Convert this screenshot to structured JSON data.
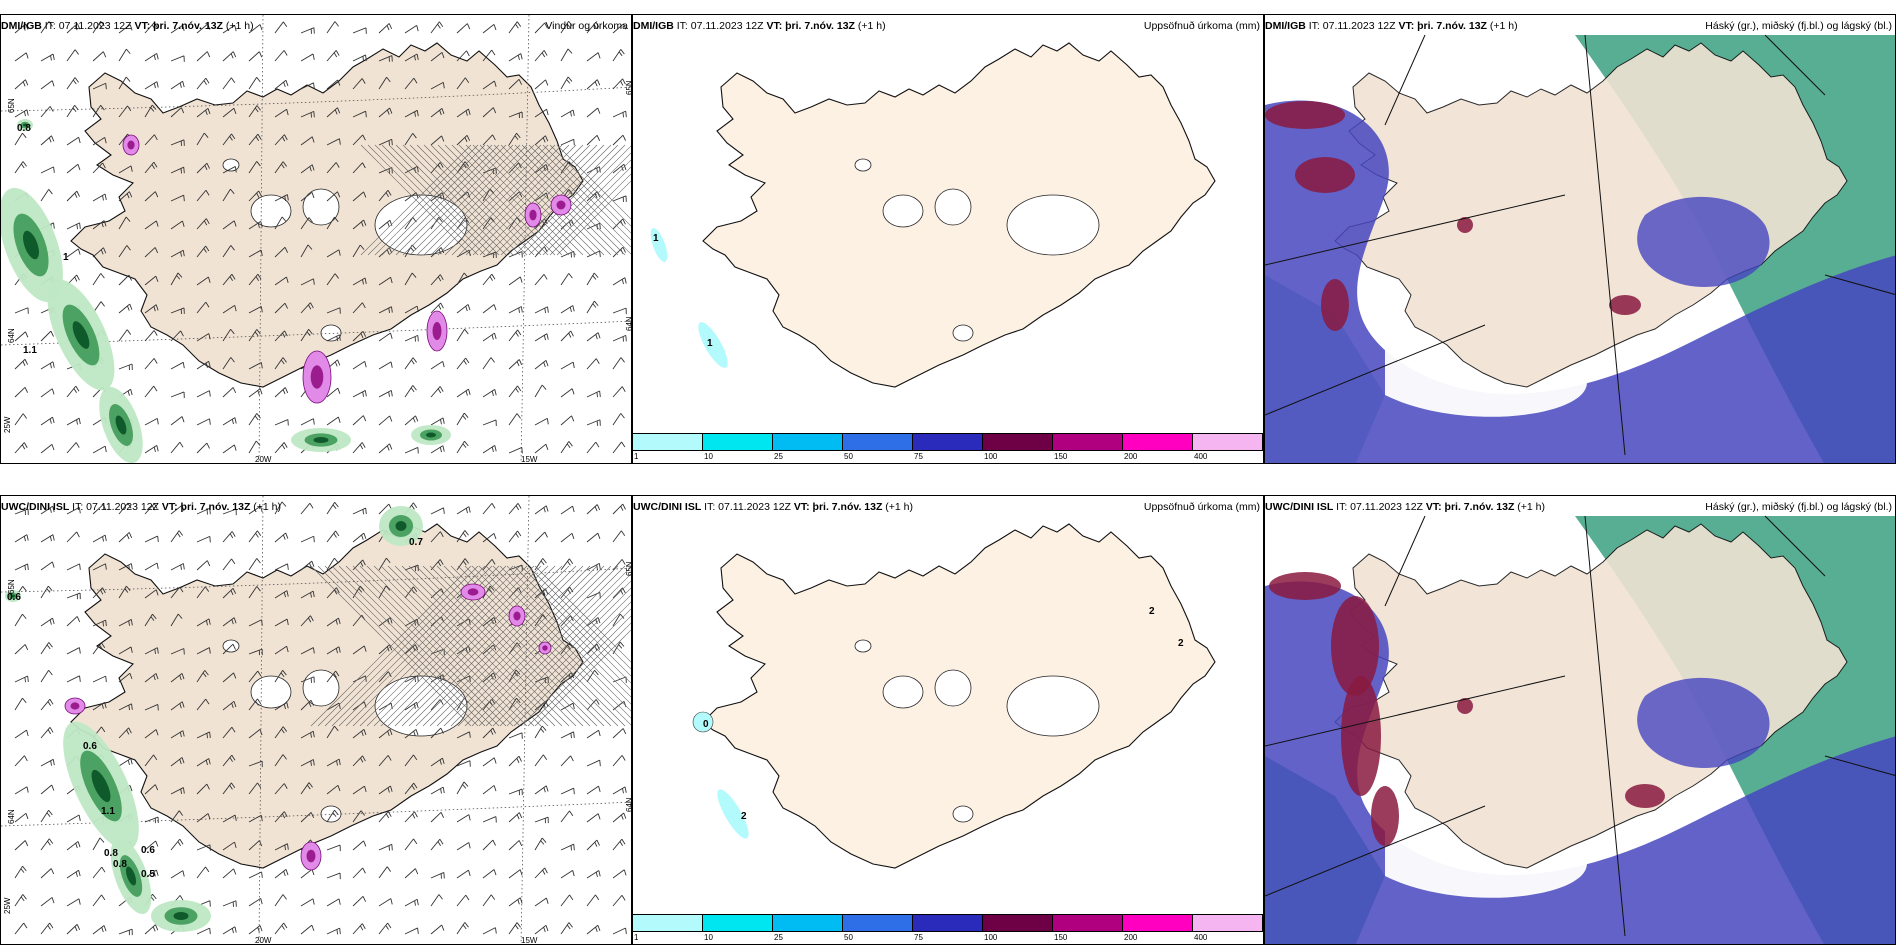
{
  "rows": [
    {
      "model": "DMI/IGB",
      "it_label": "IT:",
      "it": "07.11.2023 12Z",
      "vt_label": "VT:",
      "vt": "þri. 7.nóv. 13Z",
      "lead": "(+1 h)",
      "panels": {
        "wind": {
          "title": "Vindur og úrkoma",
          "values": [
            {
              "text": "0.8",
              "left": 16,
              "top": 108
            },
            {
              "text": "1.1",
              "left": 22,
              "top": 330
            },
            {
              "text": "1",
              "left": 62,
              "top": 237
            }
          ]
        },
        "precip": {
          "title": "Uppsöfnuð úrkoma (mm)",
          "values": [
            {
              "text": "1",
              "left": 20,
              "top": 218
            },
            {
              "text": "1",
              "left": 74,
              "top": 323
            }
          ]
        },
        "cloud": {
          "title": "Háský (gr.), miðský (fj.bl.) og lágský (bl.)"
        }
      }
    },
    {
      "model": "UWC/DINI ISL",
      "it_label": "IT:",
      "it": "07.11.2023 12Z",
      "vt_label": "VT:",
      "vt": "þri. 7.nóv. 13Z",
      "lead": "(+1 h)",
      "panels": {
        "wind": {
          "title": "",
          "values": [
            {
              "text": "0.7",
              "left": 408,
              "top": 41
            },
            {
              "text": "0.6",
              "left": 6,
              "top": 96
            },
            {
              "text": "0.6",
              "left": 82,
              "top": 245
            },
            {
              "text": "1.1",
              "left": 100,
              "top": 310
            },
            {
              "text": "0.8",
              "left": 103,
              "top": 352
            },
            {
              "text": "0.6",
              "left": 140,
              "top": 349
            },
            {
              "text": "0.8",
              "left": 112,
              "top": 363
            },
            {
              "text": "0.5",
              "left": 140,
              "top": 373
            }
          ]
        },
        "precip": {
          "title": "Uppsöfnuð úrkoma (mm)",
          "values": [
            {
              "text": "2",
              "left": 516,
              "top": 110
            },
            {
              "text": "2",
              "left": 545,
              "top": 142
            },
            {
              "text": "0",
              "left": 70,
              "top": 223
            },
            {
              "text": "2",
              "left": 108,
              "top": 315
            }
          ]
        },
        "cloud": {
          "title": "Háský (gr.), miðský (fj.bl.) og lágský (bl.)"
        }
      }
    }
  ],
  "wind_title_row2": "",
  "axis_labels": {
    "lat": [
      "65N",
      "64N",
      "25W"
    ],
    "lon": [
      "20W",
      "15W"
    ],
    "lat_right": [
      "65N",
      "64N"
    ]
  },
  "colorbar": {
    "ticks": [
      "1",
      "10",
      "25",
      "50",
      "75",
      "100",
      "150",
      "200",
      "400"
    ],
    "colors": [
      "#b3fafc",
      "#00e6f0",
      "#00bcf2",
      "#2e6ee6",
      "#2b2bbb",
      "#6e0045",
      "#b00080",
      "#ff00c0",
      "#f5b5f0"
    ]
  },
  "colors": {
    "land": "#f1e3d4",
    "land_precip": "#fdf1e4",
    "sea": "#ffffff",
    "cloud_high": "#3aa07f",
    "cloud_mid": "#4646c0",
    "cloud_low": "#8a1a40"
  }
}
